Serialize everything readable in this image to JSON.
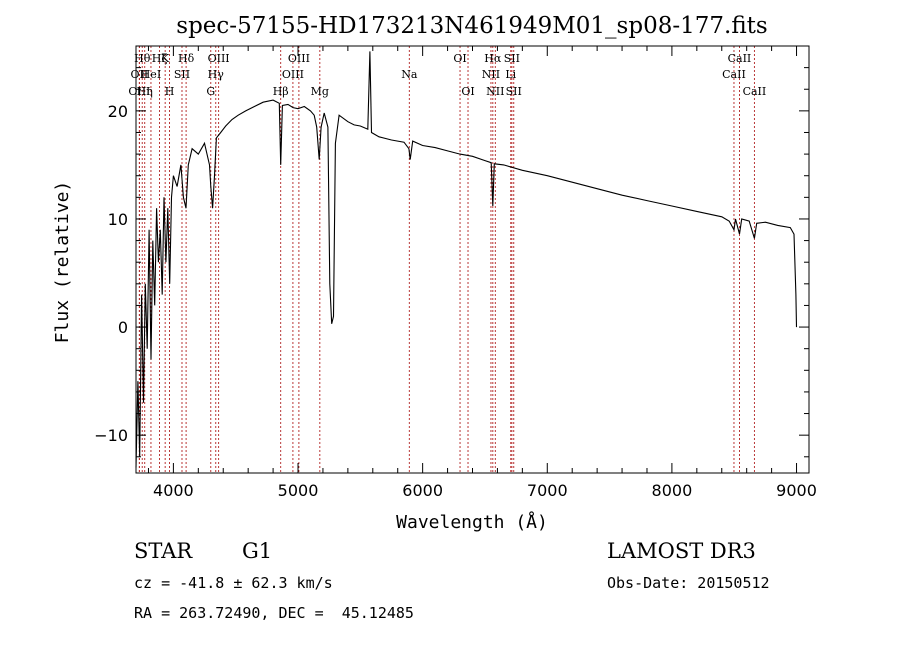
{
  "chart_data": {
    "type": "line",
    "title": "spec-57155-HD173213N461949M01_sp08-177.fits",
    "xlabel": "Wavelength (Å)",
    "ylabel": "Flux (relative)",
    "xlim": [
      3700,
      9100
    ],
    "ylim": [
      -13.5,
      26
    ],
    "xticks": [
      4000,
      5000,
      6000,
      7000,
      8000,
      9000
    ],
    "yticks": [
      -10,
      0,
      10,
      20
    ],
    "line_color": "#000000",
    "marker_color": "#b22222",
    "series": [
      {
        "points": [
          [
            3700,
            -13
          ],
          [
            3715,
            -5
          ],
          [
            3730,
            -12
          ],
          [
            3745,
            3
          ],
          [
            3760,
            -7
          ],
          [
            3775,
            4
          ],
          [
            3790,
            -2
          ],
          [
            3805,
            9
          ],
          [
            3820,
            -3
          ],
          [
            3835,
            8
          ],
          [
            3850,
            2
          ],
          [
            3865,
            11
          ],
          [
            3880,
            6
          ],
          [
            3895,
            9
          ],
          [
            3910,
            3
          ],
          [
            3925,
            12
          ],
          [
            3940,
            6
          ],
          [
            3955,
            11
          ],
          [
            3970,
            4
          ],
          [
            3985,
            12
          ],
          [
            4000,
            14
          ],
          [
            4030,
            13
          ],
          [
            4060,
            15
          ],
          [
            4080,
            12
          ],
          [
            4101,
            11
          ],
          [
            4120,
            15
          ],
          [
            4150,
            16.5
          ],
          [
            4200,
            16
          ],
          [
            4250,
            17
          ],
          [
            4290,
            15
          ],
          [
            4300,
            13
          ],
          [
            4315,
            11
          ],
          [
            4330,
            14
          ],
          [
            4345,
            17.5
          ],
          [
            4380,
            18
          ],
          [
            4420,
            18.6
          ],
          [
            4470,
            19.2
          ],
          [
            4520,
            19.6
          ],
          [
            4580,
            20
          ],
          [
            4650,
            20.4
          ],
          [
            4720,
            20.8
          ],
          [
            4800,
            21
          ],
          [
            4850,
            20.7
          ],
          [
            4861,
            15
          ],
          [
            4875,
            20.5
          ],
          [
            4920,
            20.6
          ],
          [
            4960,
            20.3
          ],
          [
            5000,
            20.2
          ],
          [
            5050,
            20.4
          ],
          [
            5100,
            20
          ],
          [
            5130,
            19.6
          ],
          [
            5150,
            18.5
          ],
          [
            5170,
            15.5
          ],
          [
            5185,
            18.5
          ],
          [
            5210,
            19.8
          ],
          [
            5240,
            18.5
          ],
          [
            5255,
            4
          ],
          [
            5270,
            0.3
          ],
          [
            5285,
            1
          ],
          [
            5300,
            17
          ],
          [
            5330,
            19.6
          ],
          [
            5400,
            19
          ],
          [
            5450,
            18.7
          ],
          [
            5500,
            18.6
          ],
          [
            5560,
            18.3
          ],
          [
            5577,
            25.5
          ],
          [
            5590,
            18
          ],
          [
            5650,
            17.6
          ],
          [
            5750,
            17.3
          ],
          [
            5850,
            17.1
          ],
          [
            5890,
            16.5
          ],
          [
            5900,
            15.5
          ],
          [
            5920,
            17.2
          ],
          [
            6000,
            16.8
          ],
          [
            6100,
            16.6
          ],
          [
            6200,
            16.3
          ],
          [
            6300,
            16
          ],
          [
            6400,
            15.8
          ],
          [
            6500,
            15.4
          ],
          [
            6550,
            15.2
          ],
          [
            6563,
            11.2
          ],
          [
            6575,
            15.1
          ],
          [
            6650,
            15
          ],
          [
            6800,
            14.5
          ],
          [
            7000,
            14
          ],
          [
            7200,
            13.4
          ],
          [
            7400,
            12.8
          ],
          [
            7600,
            12.2
          ],
          [
            7800,
            11.7
          ],
          [
            8000,
            11.2
          ],
          [
            8200,
            10.7
          ],
          [
            8400,
            10.2
          ],
          [
            8460,
            9.8
          ],
          [
            8498,
            9
          ],
          [
            8510,
            10
          ],
          [
            8542,
            8.6
          ],
          [
            8560,
            10
          ],
          [
            8620,
            9.8
          ],
          [
            8662,
            8.2
          ],
          [
            8680,
            9.6
          ],
          [
            8750,
            9.7
          ],
          [
            8850,
            9.4
          ],
          [
            8950,
            9.2
          ],
          [
            8980,
            8.6
          ],
          [
            8995,
            3
          ],
          [
            9000,
            0
          ]
        ]
      }
    ],
    "lines": [
      {
        "x": 3750,
        "label": "Hθ",
        "row": 1
      },
      {
        "x": 3727,
        "label": "OII",
        "row": 2
      },
      {
        "x": 3727,
        "label": "OIII",
        "row": 3
      },
      {
        "x": 3770,
        "label": "Hη",
        "row": 3
      },
      {
        "x": 3820,
        "label": "HeI",
        "row": 2
      },
      {
        "x": 3889,
        "label": "Hζ",
        "row": 1
      },
      {
        "x": 3934,
        "label": "K",
        "row": 1
      },
      {
        "x": 3969,
        "label": "H",
        "row": 3
      },
      {
        "x": 4069,
        "label": "SII",
        "row": 2
      },
      {
        "x": 4102,
        "label": "Hδ",
        "row": 1
      },
      {
        "x": 4300,
        "label": "G",
        "row": 3
      },
      {
        "x": 4340,
        "label": "Hγ",
        "row": 2
      },
      {
        "x": 4363,
        "label": "OIII",
        "row": 1
      },
      {
        "x": 4861,
        "label": "Hβ",
        "row": 3
      },
      {
        "x": 4959,
        "label": "OIII",
        "row": 2
      },
      {
        "x": 5007,
        "label": "OIII",
        "row": 1
      },
      {
        "x": 5175,
        "label": "Mg",
        "row": 3
      },
      {
        "x": 5893,
        "label": "Na",
        "row": 2
      },
      {
        "x": 6300,
        "label": "OI",
        "row": 1
      },
      {
        "x": 6364,
        "label": "OI",
        "row": 3
      },
      {
        "x": 6548,
        "label": "NII",
        "row": 2
      },
      {
        "x": 6563,
        "label": "Hα",
        "row": 1
      },
      {
        "x": 6583,
        "label": "NII",
        "row": 3
      },
      {
        "x": 6707,
        "label": "Li",
        "row": 2
      },
      {
        "x": 6716,
        "label": "SII",
        "row": 1
      },
      {
        "x": 6731,
        "label": "SII",
        "row": 3
      },
      {
        "x": 8498,
        "label": "CaII",
        "row": 2
      },
      {
        "x": 8542,
        "label": "CaII",
        "row": 1
      },
      {
        "x": 8662,
        "label": "CaII",
        "row": 3
      }
    ]
  },
  "info": {
    "class_label": "STAR",
    "subclass": "G1",
    "survey": "LAMOST DR3",
    "redshift": "cz = -41.8 ± 62.3 km/s",
    "obs_date": "Obs-Date: 20150512",
    "coords": "RA = 263.72490, DEC =  45.12485"
  }
}
